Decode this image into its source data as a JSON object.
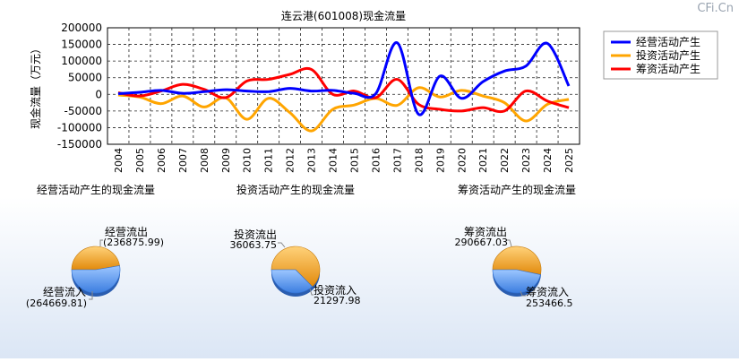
{
  "watermark": "CFi.Cn",
  "chart_data": [
    {
      "type": "line",
      "title": "连云港(601008)现金流量",
      "ylabel": "现金流量（万元）",
      "x": [
        "2004",
        "2005",
        "2006",
        "2007",
        "2008",
        "2009",
        "2010",
        "2011",
        "2012",
        "2013",
        "2014",
        "2015",
        "2016",
        "2017",
        "2018",
        "2019",
        "2020",
        "2021",
        "2022",
        "2023",
        "2024",
        "2025"
      ],
      "y_ticks": [
        "200000",
        "150000",
        "100000",
        "50000",
        "0",
        "-50000",
        "-100000",
        "-150000"
      ],
      "ylim": [
        -150000,
        200000
      ],
      "grid": true,
      "legend_position": "top-right",
      "series": [
        {
          "name": "经营活动产生",
          "color": "#0000ff",
          "values": [
            2000,
            6000,
            12000,
            3000,
            8000,
            14000,
            10000,
            8000,
            18000,
            10000,
            12000,
            3000,
            2000,
            155000,
            -60000,
            55000,
            -12000,
            38000,
            70000,
            85000,
            153000,
            25000
          ]
        },
        {
          "name": "投资活动产生",
          "color": "#ffa500",
          "values": [
            -2000,
            -8000,
            -28000,
            -5000,
            -38000,
            -10000,
            -75000,
            -12000,
            -55000,
            -110000,
            -45000,
            -32000,
            -12000,
            -33000,
            20000,
            -8000,
            12000,
            -5000,
            -25000,
            -80000,
            -30000,
            -15000
          ]
        },
        {
          "name": "筹资活动产生",
          "color": "#ff0000",
          "values": [
            5000,
            -5000,
            10000,
            30000,
            15000,
            -10000,
            40000,
            45000,
            60000,
            75000,
            0,
            10000,
            -10000,
            45000,
            -30000,
            -45000,
            -50000,
            -40000,
            -50000,
            10000,
            -20000,
            -40000
          ]
        }
      ]
    },
    {
      "type": "pie",
      "title": "经营活动产生的现金流量",
      "slices": [
        {
          "label": "经营流出",
          "value_text": "(236875.99)",
          "value": 236875.99,
          "color": "#f5a623"
        },
        {
          "label": "经营流入",
          "value_text": "(264669.81)",
          "value": 264669.81,
          "color": "#5b9bf2"
        }
      ]
    },
    {
      "type": "pie",
      "title": "投资活动产生的现金流量",
      "slices": [
        {
          "label": "投资流出",
          "value_text": "36063.75",
          "value": 36063.75,
          "color": "#f5a623"
        },
        {
          "label": "投资流入",
          "value_text": "21297.98",
          "value": 21297.98,
          "color": "#5b9bf2"
        }
      ]
    },
    {
      "type": "pie",
      "title": "筹资活动产生的现金流量",
      "slices": [
        {
          "label": "筹资流出",
          "value_text": "290667.03",
          "value": 290667.03,
          "color": "#f5a623"
        },
        {
          "label": "筹资流入",
          "value_text": "253466.5",
          "value": 253466.5,
          "color": "#5b9bf2"
        }
      ]
    }
  ]
}
